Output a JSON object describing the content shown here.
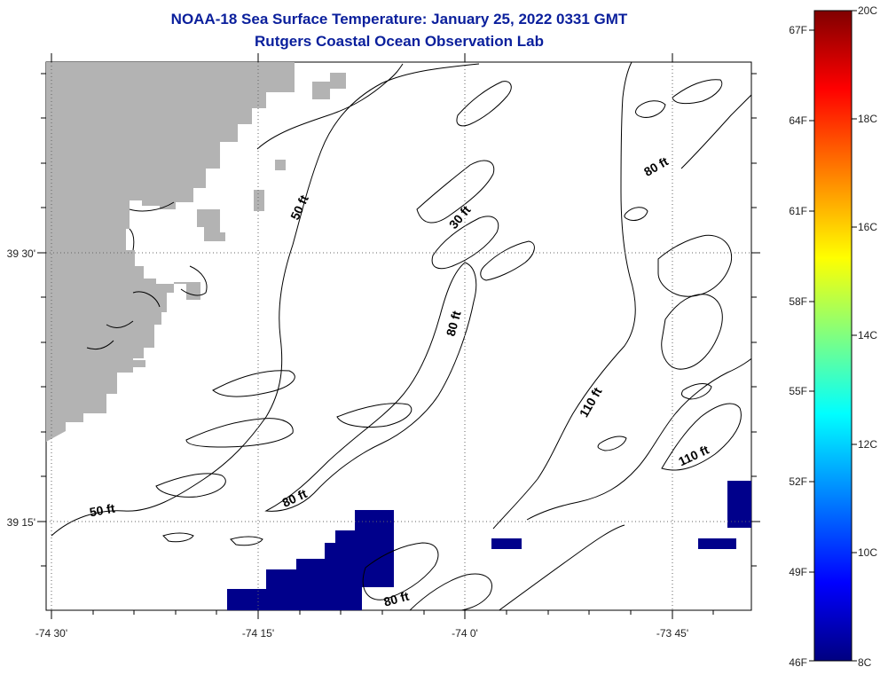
{
  "header": {
    "title": "NOAA-18 Sea Surface Temperature:  January 25, 2022 0331 GMT",
    "subtitle": "Rutgers Coastal Ocean Observation Lab"
  },
  "map": {
    "lon_ticks": [
      "-74 30'",
      "-74 15'",
      "-74 0'",
      "-73 45'"
    ],
    "lat_ticks": [
      "39 30'",
      "39 15'"
    ],
    "contour_labels": [
      "50 ft",
      "30 ft",
      "80 ft",
      "80 ft",
      "110 ft",
      "110 ft",
      "80 ft",
      "50 ft",
      "80 ft"
    ],
    "colors": {
      "land": "#b3b3b3",
      "sst_cold": "#00008b",
      "contour": "#000000",
      "grid": "#555555"
    }
  },
  "colorbar": {
    "fahrenheit_labels": [
      "67F",
      "64F",
      "61F",
      "58F",
      "55F",
      "52F",
      "49F",
      "46F"
    ],
    "celsius_labels": [
      "20C",
      "18C",
      "16C",
      "14C",
      "12C",
      "10C",
      "8C"
    ],
    "min_c": 8,
    "max_c": 20,
    "gradient": [
      "#800000",
      "#ff0000",
      "#ff8000",
      "#ffff00",
      "#80ff80",
      "#00ffff",
      "#0080ff",
      "#0000ff",
      "#000080"
    ]
  }
}
